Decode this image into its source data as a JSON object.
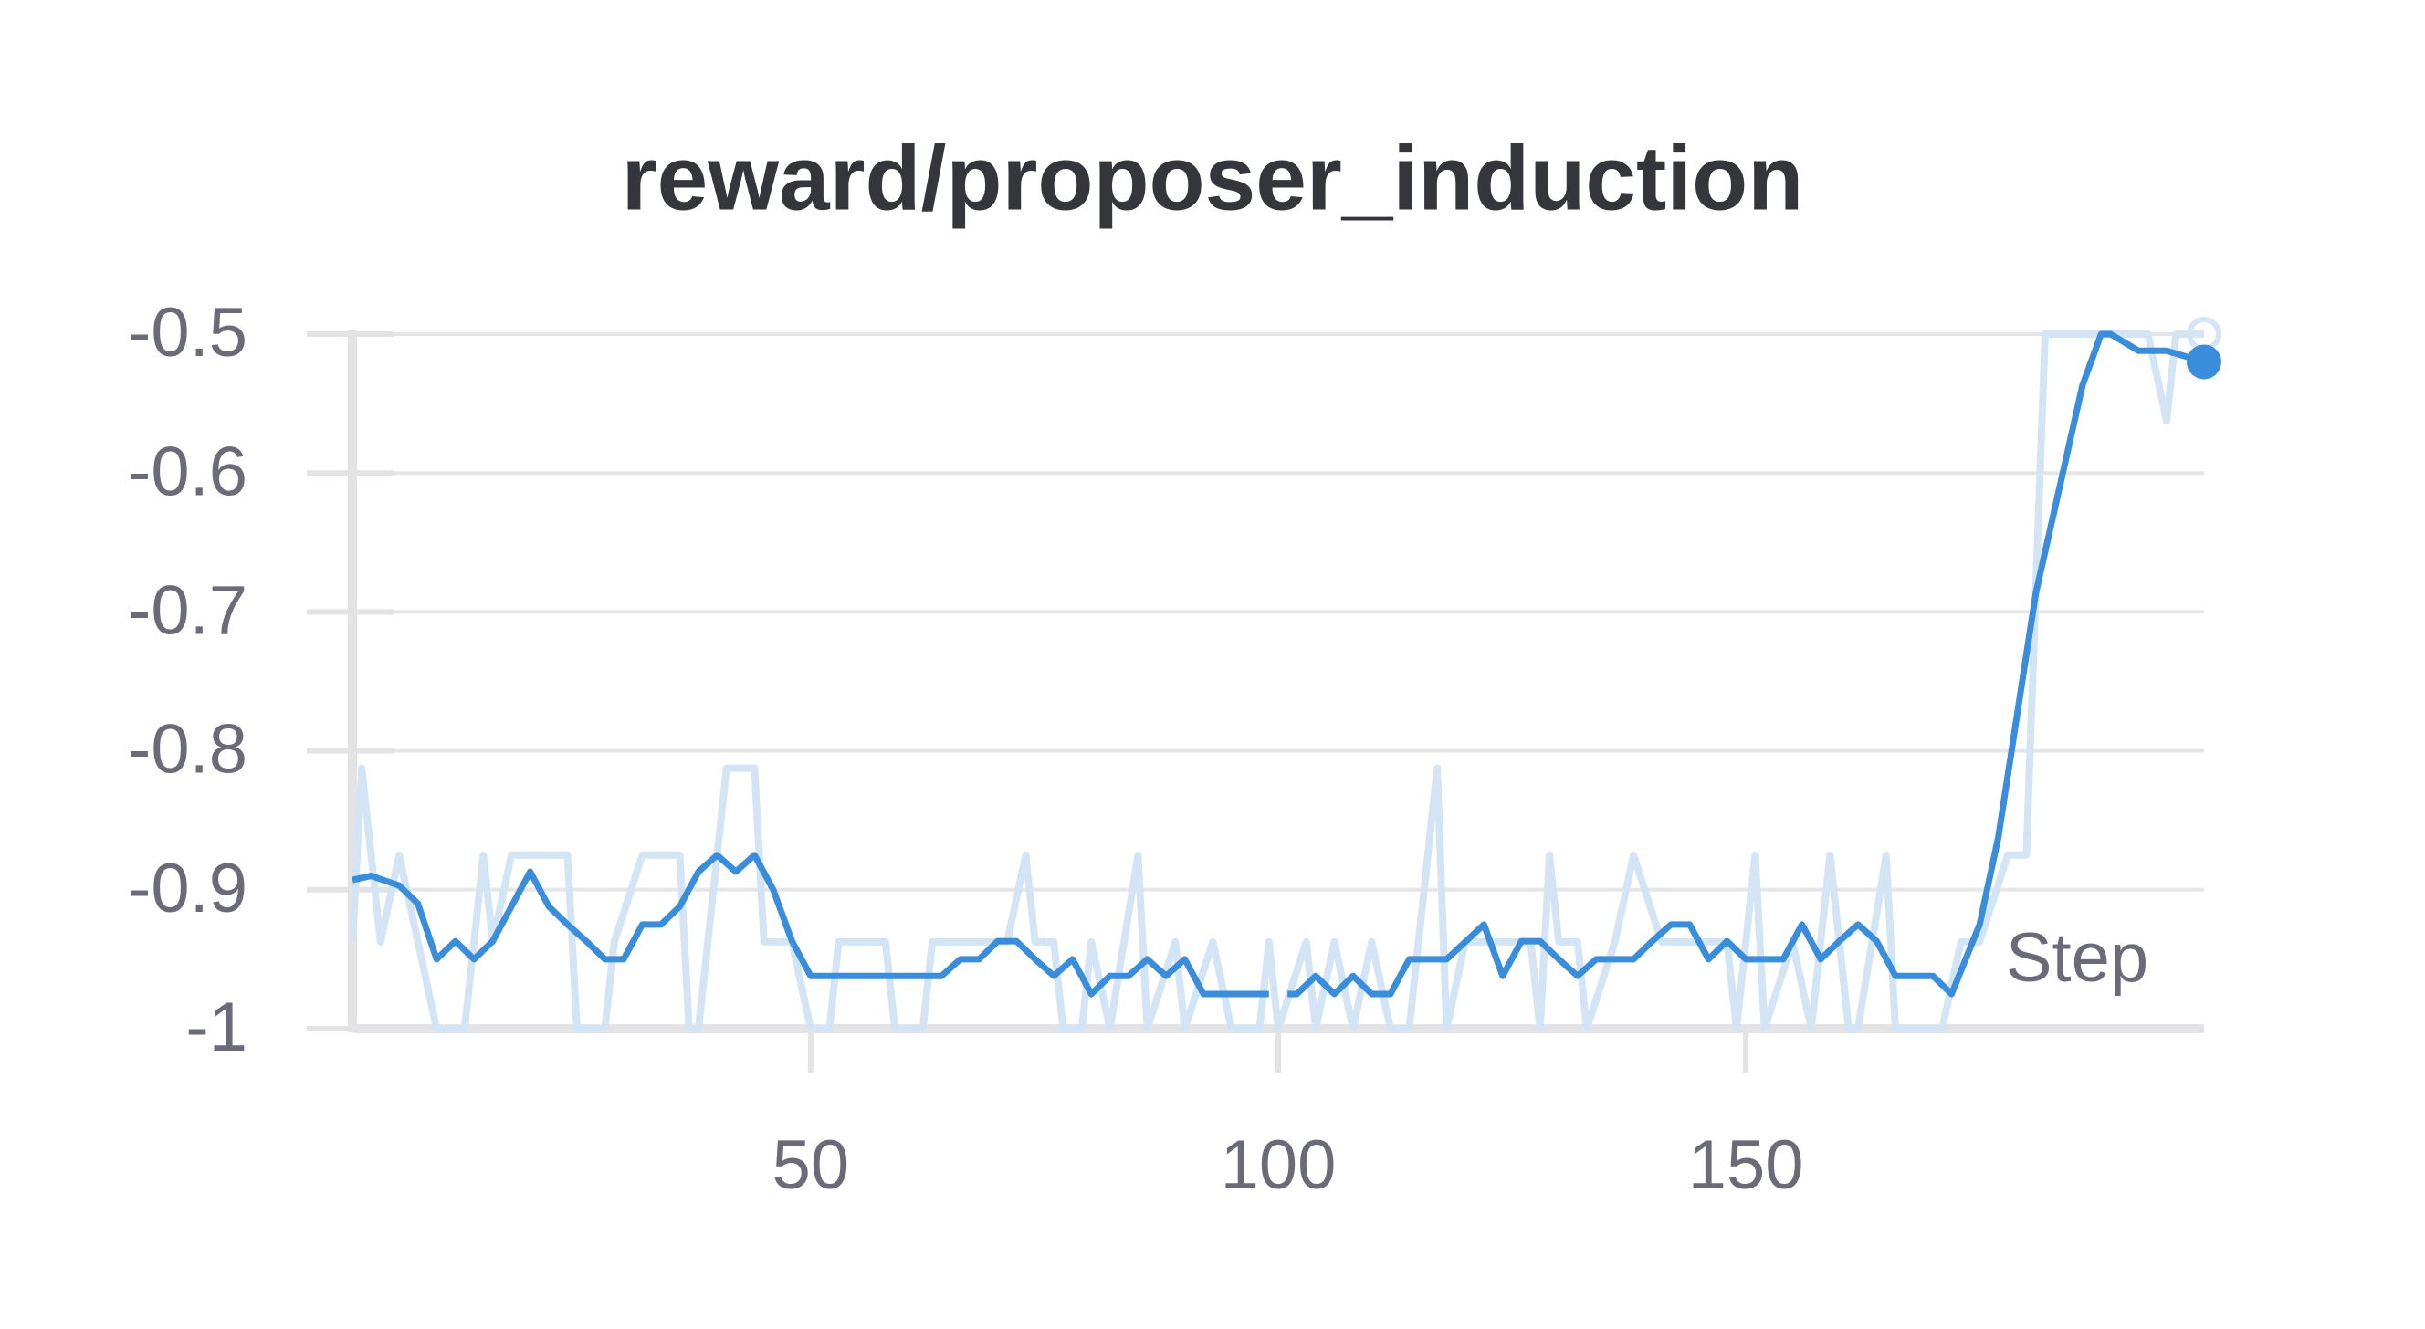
{
  "chart_data": {
    "type": "line",
    "title": "reward/proposer_induction",
    "xlabel": "Step",
    "xlim": [
      1,
      199
    ],
    "xticks": [
      50,
      100,
      150
    ],
    "ylim": [
      -1,
      -0.5
    ],
    "yticks": [
      -1,
      -0.9,
      -0.8,
      -0.7,
      -0.6,
      -0.5
    ],
    "grid": true,
    "series": [
      {
        "name": "reward/proposer_induction",
        "color": "#d3e5f5",
        "x": [
          1,
          2,
          4,
          6,
          8,
          10,
          13,
          15,
          16,
          18,
          20,
          24,
          25,
          28,
          29,
          32,
          36,
          37,
          38,
          41,
          44,
          45,
          48,
          50,
          52,
          53,
          58,
          59,
          62,
          63,
          71,
          73,
          74,
          76,
          77,
          79,
          80,
          82,
          85,
          86,
          89,
          90,
          93,
          95,
          98,
          99,
          100,
          103,
          104,
          106,
          108,
          110,
          112,
          114,
          117,
          118,
          120,
          127,
          128,
          129,
          130,
          132,
          133,
          136,
          138,
          141,
          148,
          149,
          151,
          152,
          155,
          157,
          159,
          161,
          162,
          165,
          166,
          171,
          173,
          175,
          178,
          180,
          181,
          182,
          193,
          195,
          196,
          199
        ],
        "values": [
          -0.9375,
          -0.8125,
          -0.9375,
          -0.875,
          -0.9375,
          -1,
          -1,
          -0.875,
          -0.9375,
          -0.875,
          -0.875,
          -0.875,
          -1,
          -1,
          -0.9375,
          -0.875,
          -0.875,
          -1,
          -1,
          -0.8125,
          -0.8125,
          -0.9375,
          -0.9375,
          -1,
          -1,
          -0.9375,
          -0.9375,
          -1,
          -1,
          -0.9375,
          -0.9375,
          -0.875,
          -0.9375,
          -0.9375,
          -1,
          -1,
          -0.9375,
          -1,
          -0.875,
          -1,
          -0.9375,
          -1,
          -0.9375,
          -1,
          -1,
          -0.9375,
          -1,
          -0.9375,
          -1,
          -0.9375,
          -1,
          -0.9375,
          -1,
          -1,
          -0.8125,
          -1,
          -0.9375,
          -0.9375,
          -1,
          -0.875,
          -0.9375,
          -0.9375,
          -1,
          -0.9375,
          -0.875,
          -0.9375,
          -0.9375,
          -1,
          -0.875,
          -1,
          -0.9375,
          -1,
          -0.875,
          -1,
          -1,
          -0.875,
          -1,
          -1,
          -0.9375,
          -0.9375,
          -0.875,
          -0.875,
          -0.6875,
          -0.5,
          -0.5,
          -0.5625,
          -0.5,
          -0.5
        ]
      },
      {
        "name": "reward/proposer_induction (smoothed)",
        "color": "#3a8ddb",
        "x": [
          1,
          3,
          6,
          8,
          10,
          12,
          14,
          16,
          18,
          20,
          22,
          24,
          26,
          28,
          30,
          32,
          34,
          36,
          38,
          40,
          42,
          44,
          46,
          48,
          50,
          52,
          56,
          60,
          64,
          66,
          68,
          70,
          72,
          74,
          76,
          78,
          80,
          82,
          84,
          86,
          88,
          90,
          92,
          96,
          99,
          100,
          101,
          102,
          104,
          106,
          108,
          110,
          112,
          114,
          118,
          122,
          124,
          126,
          128,
          130,
          132,
          134,
          138,
          140,
          142,
          144,
          146,
          148,
          150,
          154,
          156,
          158,
          160,
          162,
          164,
          166,
          170,
          172,
          175,
          177,
          181,
          186,
          188,
          189,
          192,
          195,
          199
        ],
        "values": [
          -0.893,
          -0.89,
          -0.897,
          -0.91,
          -0.95,
          -0.937,
          -0.95,
          -0.937,
          -0.912,
          -0.887,
          -0.912,
          -0.925,
          -0.937,
          -0.95,
          -0.95,
          -0.925,
          -0.925,
          -0.912,
          -0.887,
          -0.875,
          -0.887,
          -0.875,
          -0.9,
          -0.937,
          -0.962,
          -0.962,
          -0.962,
          -0.962,
          -0.962,
          -0.95,
          -0.95,
          -0.937,
          -0.937,
          -0.95,
          -0.962,
          -0.95,
          -0.975,
          -0.962,
          -0.962,
          -0.95,
          -0.962,
          -0.95,
          -0.975,
          -0.975,
          -0.975,
          null,
          -0.975,
          -0.975,
          -0.962,
          -0.975,
          -0.962,
          -0.975,
          -0.975,
          -0.95,
          -0.95,
          -0.925,
          -0.962,
          -0.937,
          -0.937,
          -0.95,
          -0.962,
          -0.95,
          -0.95,
          -0.937,
          -0.925,
          -0.925,
          -0.95,
          -0.937,
          -0.95,
          -0.95,
          -0.925,
          -0.95,
          -0.937,
          -0.925,
          -0.937,
          -0.962,
          -0.962,
          -0.975,
          -0.925,
          -0.862,
          -0.687,
          -0.537,
          -0.5,
          -0.5,
          -0.512,
          -0.512,
          -0.52
        ]
      }
    ]
  }
}
